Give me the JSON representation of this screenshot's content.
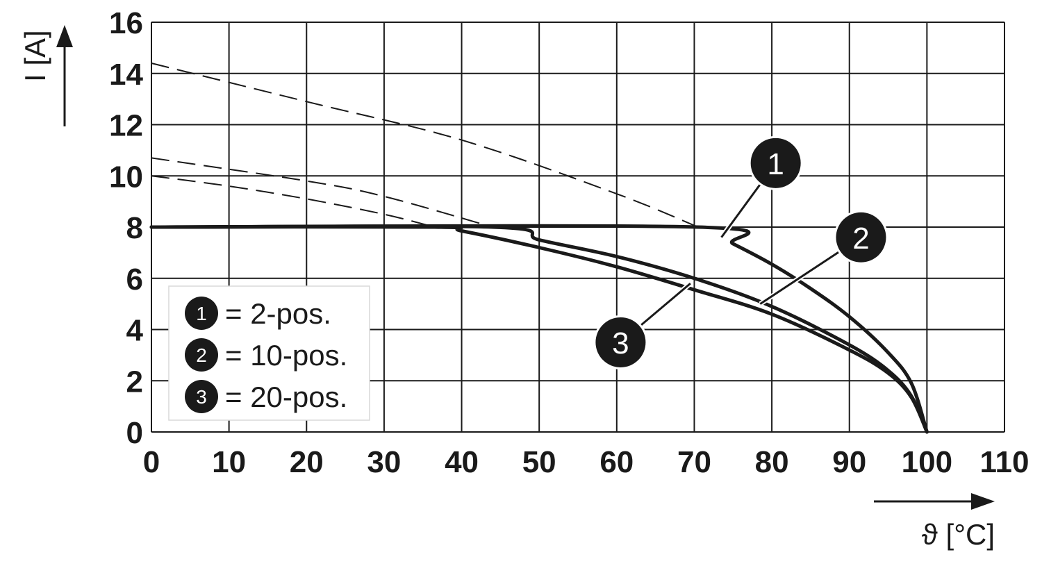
{
  "chart_data": {
    "type": "line",
    "title": "",
    "xlabel": "ϑ [°C]",
    "ylabel": "I [A]",
    "xlim": [
      0,
      110
    ],
    "ylim": [
      0,
      16
    ],
    "x_ticks": [
      "0",
      "10",
      "20",
      "30",
      "40",
      "50",
      "60",
      "70",
      "80",
      "90",
      "100",
      "110"
    ],
    "y_ticks": [
      "0",
      "2",
      "4",
      "6",
      "8",
      "10",
      "12",
      "14",
      "16"
    ],
    "grid": true,
    "legend_position": "bottom-left",
    "series": [
      {
        "marker": "1",
        "label": "= 2-pos.",
        "points": [
          [
            0,
            8
          ],
          [
            70.5,
            8
          ],
          [
            75,
            7.35
          ],
          [
            80,
            6.55
          ],
          [
            85,
            5.6
          ],
          [
            90,
            4.5
          ],
          [
            95,
            3.1
          ],
          [
            98,
            1.9
          ],
          [
            100,
            0
          ]
        ],
        "extrapolation": [
          [
            0,
            14.4
          ],
          [
            20,
            12.9
          ],
          [
            40,
            11.4
          ],
          [
            60,
            9.3
          ],
          [
            70.5,
            8
          ]
        ]
      },
      {
        "marker": "2",
        "label": "= 10-pos.",
        "points": [
          [
            0,
            8
          ],
          [
            44,
            8
          ],
          [
            50,
            7.5
          ],
          [
            60,
            6.85
          ],
          [
            70,
            6.0
          ],
          [
            80,
            4.9
          ],
          [
            90,
            3.4
          ],
          [
            95,
            2.4
          ],
          [
            98,
            1.4
          ],
          [
            100,
            0
          ]
        ],
        "extrapolation": [
          [
            0,
            10.7
          ],
          [
            20,
            9.8
          ],
          [
            30,
            9.2
          ],
          [
            44,
            8
          ]
        ]
      },
      {
        "marker": "3",
        "label": "= 20-pos.",
        "points": [
          [
            0,
            8
          ],
          [
            36.5,
            8
          ],
          [
            40,
            7.85
          ],
          [
            50,
            7.2
          ],
          [
            60,
            6.45
          ],
          [
            70,
            5.55
          ],
          [
            80,
            4.6
          ],
          [
            90,
            3.2
          ],
          [
            95,
            2.3
          ],
          [
            98,
            1.35
          ],
          [
            100,
            0
          ]
        ],
        "extrapolation": [
          [
            0,
            10.0
          ],
          [
            10,
            9.6
          ],
          [
            20,
            9.1
          ],
          [
            30,
            8.5
          ],
          [
            36.5,
            8
          ]
        ]
      }
    ],
    "annotations": [
      {
        "marker": "1",
        "x": 80.5,
        "y": 10.5,
        "points_to": [
          73.5,
          7.6
        ]
      },
      {
        "marker": "2",
        "x": 91.5,
        "y": 7.6,
        "points_to": [
          78.5,
          5.0
        ]
      },
      {
        "marker": "3",
        "x": 60.5,
        "y": 3.5,
        "points_to": [
          69.5,
          5.8
        ]
      }
    ]
  }
}
